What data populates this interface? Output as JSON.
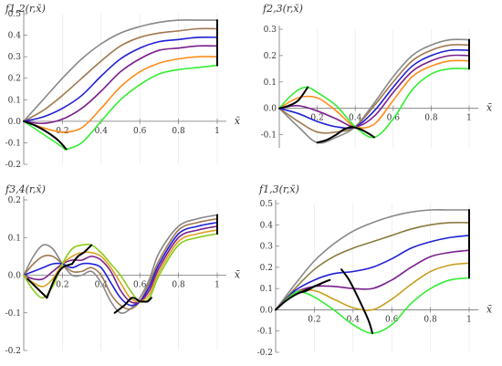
{
  "chart_data": [
    {
      "type": "line",
      "title": "f1,2(r,x̄)",
      "xlabel": "x̄",
      "ylabel": "",
      "xlim": [
        0,
        1
      ],
      "ylim": [
        -0.2,
        0.5
      ],
      "xticks": [
        "0.2",
        "0.4",
        "0.6",
        "0.8",
        "1"
      ],
      "yticks": [
        "-0.2",
        "-0.1",
        "0.0",
        "0.1",
        "0.2",
        "0.3",
        "0.4",
        "0.5"
      ],
      "series": [
        {
          "color": "#888888",
          "x": [
            0,
            0.1,
            0.2,
            0.3,
            0.4,
            0.5,
            0.6,
            0.7,
            0.8,
            0.9,
            1.0
          ],
          "values": [
            0,
            0.1,
            0.2,
            0.29,
            0.36,
            0.41,
            0.44,
            0.46,
            0.47,
            0.47,
            0.47
          ]
        },
        {
          "color": "#a07850",
          "x": [
            0,
            0.1,
            0.2,
            0.3,
            0.4,
            0.5,
            0.6,
            0.7,
            0.8,
            0.9,
            1.0
          ],
          "values": [
            0,
            0.05,
            0.12,
            0.2,
            0.28,
            0.35,
            0.39,
            0.41,
            0.42,
            0.43,
            0.43
          ]
        },
        {
          "color": "#1f1fd6",
          "x": [
            0,
            0.1,
            0.2,
            0.3,
            0.4,
            0.5,
            0.6,
            0.7,
            0.8,
            0.9,
            1.0
          ],
          "values": [
            0,
            0.02,
            0.06,
            0.12,
            0.21,
            0.29,
            0.34,
            0.37,
            0.38,
            0.39,
            0.39
          ]
        },
        {
          "color": "#7a1f8c",
          "x": [
            0,
            0.1,
            0.2,
            0.3,
            0.4,
            0.5,
            0.6,
            0.7,
            0.8,
            0.9,
            1.0
          ],
          "values": [
            0,
            -0.01,
            0.01,
            0.06,
            0.14,
            0.23,
            0.29,
            0.33,
            0.34,
            0.35,
            0.35
          ]
        },
        {
          "color": "#ff8c1a",
          "x": [
            0,
            0.1,
            0.2,
            0.3,
            0.4,
            0.5,
            0.6,
            0.7,
            0.8,
            0.9,
            1.0
          ],
          "values": [
            0,
            -0.03,
            -0.05,
            -0.03,
            0.06,
            0.16,
            0.23,
            0.27,
            0.29,
            0.3,
            0.3
          ]
        },
        {
          "color": "#33ee33",
          "x": [
            0,
            0.1,
            0.2,
            0.22,
            0.3,
            0.4,
            0.5,
            0.6,
            0.7,
            0.8,
            0.9,
            1.0
          ],
          "values": [
            0,
            -0.06,
            -0.12,
            -0.13,
            -0.1,
            0.0,
            0.1,
            0.17,
            0.22,
            0.24,
            0.25,
            0.26
          ]
        }
      ],
      "black_segments": [
        {
          "x": [
            0,
            0.06,
            0.12,
            0.18,
            0.22
          ],
          "values": [
            0,
            -0.02,
            -0.05,
            -0.09,
            -0.13
          ]
        },
        {
          "x": [
            1.0,
            1.0
          ],
          "values": [
            0.26,
            0.47
          ]
        }
      ]
    },
    {
      "type": "line",
      "title": "f2,3(r,x̄)",
      "xlabel": "x̄",
      "ylabel": "",
      "xlim": [
        0,
        1
      ],
      "ylim": [
        -0.15,
        0.3
      ],
      "xticks": [
        "0.2",
        "0.4",
        "0.6",
        "0.8",
        "1"
      ],
      "yticks": [
        "-0.1",
        "0.0",
        "0.1",
        "0.2",
        "0.3"
      ],
      "series": [
        {
          "color": "#888888",
          "x": [
            0,
            0.1,
            0.2,
            0.3,
            0.4,
            0.5,
            0.6,
            0.7,
            0.8,
            0.9,
            1.0
          ],
          "values": [
            0,
            -0.07,
            -0.13,
            -0.11,
            -0.07,
            0.02,
            0.12,
            0.2,
            0.24,
            0.26,
            0.26
          ]
        },
        {
          "color": "#a07850",
          "x": [
            0,
            0.1,
            0.2,
            0.3,
            0.4,
            0.5,
            0.6,
            0.7,
            0.8,
            0.9,
            1.0
          ],
          "values": [
            0,
            -0.05,
            -0.09,
            -0.09,
            -0.07,
            0.01,
            0.1,
            0.18,
            0.22,
            0.24,
            0.24
          ]
        },
        {
          "color": "#1f1fd6",
          "x": [
            0,
            0.1,
            0.2,
            0.3,
            0.4,
            0.5,
            0.6,
            0.7,
            0.8,
            0.9,
            1.0
          ],
          "values": [
            0,
            -0.02,
            -0.05,
            -0.07,
            -0.07,
            -0.01,
            0.08,
            0.16,
            0.2,
            0.22,
            0.22
          ]
        },
        {
          "color": "#7a1f8c",
          "x": [
            0,
            0.1,
            0.2,
            0.3,
            0.4,
            0.5,
            0.6,
            0.7,
            0.8,
            0.9,
            1.0
          ],
          "values": [
            0,
            0.01,
            -0.01,
            -0.04,
            -0.07,
            -0.03,
            0.06,
            0.14,
            0.18,
            0.2,
            0.2
          ]
        },
        {
          "color": "#ff8c1a",
          "x": [
            0,
            0.1,
            0.2,
            0.3,
            0.4,
            0.5,
            0.6,
            0.7,
            0.8,
            0.9,
            1.0
          ],
          "values": [
            0,
            0.04,
            0.04,
            -0.01,
            -0.07,
            -0.06,
            0.03,
            0.12,
            0.16,
            0.18,
            0.18
          ]
        },
        {
          "color": "#33ee33",
          "x": [
            0,
            0.05,
            0.1,
            0.15,
            0.2,
            0.3,
            0.4,
            0.5,
            0.6,
            0.7,
            0.8,
            0.9,
            1.0
          ],
          "values": [
            0,
            0.04,
            0.07,
            0.08,
            0.06,
            0.01,
            -0.07,
            -0.11,
            -0.04,
            0.07,
            0.13,
            0.15,
            0.15
          ]
        }
      ],
      "black_segments": [
        {
          "x": [
            0,
            0.05,
            0.1,
            0.15
          ],
          "values": [
            0,
            0.01,
            0.03,
            0.08
          ]
        },
        {
          "x": [
            0.2,
            0.25,
            0.3,
            0.34,
            0.38
          ],
          "values": [
            -0.13,
            -0.12,
            -0.1,
            -0.08,
            -0.07
          ]
        },
        {
          "x": [
            0.38,
            0.43,
            0.48,
            0.5
          ],
          "values": [
            -0.07,
            -0.08,
            -0.1,
            -0.11
          ]
        },
        {
          "x": [
            1.0,
            1.0
          ],
          "values": [
            0.15,
            0.26
          ]
        }
      ]
    },
    {
      "type": "line",
      "title": "f3,4(r,x̄)",
      "xlabel": "x̄",
      "ylabel": "",
      "xlim": [
        0,
        1
      ],
      "ylim": [
        -0.2,
        0.2
      ],
      "xticks": [
        "0.2",
        "0.4",
        "0.6",
        "0.8",
        "1"
      ],
      "yticks": [
        "-0.2",
        "-0.1",
        "0.0",
        "0.1",
        "0.2"
      ],
      "series": [
        {
          "color": "#888888",
          "x": [
            0,
            0.05,
            0.1,
            0.15,
            0.2,
            0.25,
            0.3,
            0.35,
            0.4,
            0.45,
            0.5,
            0.55,
            0.6,
            0.65,
            0.7,
            0.8,
            0.9,
            1.0
          ],
          "values": [
            0,
            0.05,
            0.08,
            0.07,
            0.03,
            0.0,
            0.0,
            0.01,
            -0.02,
            -0.07,
            -0.1,
            -0.09,
            -0.06,
            -0.01,
            0.06,
            0.13,
            0.15,
            0.16
          ]
        },
        {
          "color": "#a07850",
          "x": [
            0,
            0.05,
            0.1,
            0.15,
            0.2,
            0.25,
            0.3,
            0.35,
            0.4,
            0.45,
            0.5,
            0.55,
            0.6,
            0.65,
            0.7,
            0.8,
            0.9,
            1.0
          ],
          "values": [
            0,
            0.03,
            0.05,
            0.05,
            0.03,
            0.01,
            0.01,
            0.02,
            0.0,
            -0.05,
            -0.08,
            -0.09,
            -0.07,
            -0.02,
            0.04,
            0.12,
            0.14,
            0.15
          ]
        },
        {
          "color": "#1f1fd6",
          "x": [
            0,
            0.05,
            0.1,
            0.15,
            0.2,
            0.25,
            0.3,
            0.35,
            0.4,
            0.45,
            0.5,
            0.55,
            0.6,
            0.65,
            0.7,
            0.8,
            0.9,
            1.0
          ],
          "values": [
            0,
            0.01,
            0.02,
            0.03,
            0.03,
            0.02,
            0.03,
            0.03,
            0.02,
            -0.02,
            -0.06,
            -0.08,
            -0.07,
            -0.03,
            0.03,
            0.11,
            0.13,
            0.14
          ]
        },
        {
          "color": "#7a1f8c",
          "x": [
            0,
            0.05,
            0.1,
            0.15,
            0.2,
            0.25,
            0.3,
            0.35,
            0.4,
            0.45,
            0.5,
            0.55,
            0.6,
            0.65,
            0.7,
            0.8,
            0.9,
            1.0
          ],
          "values": [
            0,
            -0.01,
            -0.01,
            0.01,
            0.03,
            0.04,
            0.04,
            0.05,
            0.04,
            0.01,
            -0.04,
            -0.07,
            -0.07,
            -0.04,
            0.02,
            0.1,
            0.12,
            0.13
          ]
        },
        {
          "color": "#e0a020",
          "x": [
            0,
            0.05,
            0.1,
            0.15,
            0.2,
            0.25,
            0.3,
            0.35,
            0.4,
            0.45,
            0.5,
            0.55,
            0.6,
            0.65,
            0.7,
            0.8,
            0.9,
            1.0
          ],
          "values": [
            0,
            -0.02,
            -0.03,
            -0.01,
            0.03,
            0.05,
            0.06,
            0.06,
            0.05,
            0.02,
            -0.02,
            -0.06,
            -0.07,
            -0.05,
            0.01,
            0.09,
            0.11,
            0.12
          ]
        },
        {
          "color": "#8ccc1a",
          "x": [
            0,
            0.05,
            0.1,
            0.15,
            0.2,
            0.25,
            0.3,
            0.35,
            0.4,
            0.45,
            0.5,
            0.55,
            0.6,
            0.65,
            0.7,
            0.8,
            0.9,
            1.0
          ],
          "values": [
            0,
            -0.04,
            -0.06,
            -0.03,
            0.03,
            0.07,
            0.08,
            0.08,
            0.06,
            0.03,
            0.0,
            -0.04,
            -0.07,
            -0.06,
            0.0,
            0.08,
            0.1,
            0.11
          ]
        }
      ],
      "black_segments": [
        {
          "x": [
            0.02,
            0.06,
            0.1,
            0.12
          ],
          "values": [
            -0.01,
            -0.03,
            -0.05,
            -0.06
          ]
        },
        {
          "x": [
            0.12,
            0.16,
            0.2,
            0.25
          ],
          "values": [
            -0.06,
            -0.01,
            0.02,
            0.03
          ]
        },
        {
          "x": [
            0.25,
            0.28,
            0.31,
            0.35
          ],
          "values": [
            0.03,
            0.05,
            0.06,
            0.08
          ]
        },
        {
          "x": [
            0.47,
            0.52,
            0.56,
            0.6
          ],
          "values": [
            -0.1,
            -0.08,
            -0.06,
            -0.07
          ]
        },
        {
          "x": [
            0.6,
            0.62,
            0.64,
            0.66
          ],
          "values": [
            -0.07,
            -0.07,
            -0.07,
            -0.06
          ]
        },
        {
          "x": [
            1.0,
            1.0
          ],
          "values": [
            0.11,
            0.16
          ]
        }
      ]
    },
    {
      "type": "line",
      "title": "f1,3(r,x̄)",
      "xlabel": "x̄",
      "ylabel": "",
      "xlim": [
        0,
        1
      ],
      "ylim": [
        -0.2,
        0.5
      ],
      "xticks": [
        "0.2",
        "0.4",
        "0.6",
        "0.8",
        "1"
      ],
      "yticks": [
        "-0.2",
        "-0.1",
        "0.0",
        "0.1",
        "0.2",
        "0.3",
        "0.4",
        "0.5"
      ],
      "series": [
        {
          "color": "#888888",
          "x": [
            0,
            0.1,
            0.2,
            0.3,
            0.4,
            0.5,
            0.6,
            0.7,
            0.8,
            0.9,
            1.0
          ],
          "values": [
            0,
            0.12,
            0.23,
            0.31,
            0.37,
            0.41,
            0.44,
            0.46,
            0.47,
            0.47,
            0.47
          ]
        },
        {
          "color": "#8a7a40",
          "x": [
            0,
            0.1,
            0.2,
            0.3,
            0.4,
            0.5,
            0.6,
            0.7,
            0.8,
            0.9,
            1.0
          ],
          "values": [
            0,
            0.1,
            0.19,
            0.25,
            0.29,
            0.32,
            0.35,
            0.38,
            0.4,
            0.41,
            0.41
          ]
        },
        {
          "color": "#1f1fd6",
          "x": [
            0,
            0.1,
            0.2,
            0.3,
            0.4,
            0.5,
            0.6,
            0.7,
            0.8,
            0.9,
            1.0
          ],
          "values": [
            0,
            0.09,
            0.14,
            0.17,
            0.18,
            0.2,
            0.24,
            0.29,
            0.32,
            0.34,
            0.35
          ]
        },
        {
          "color": "#7a1f8c",
          "x": [
            0,
            0.1,
            0.2,
            0.3,
            0.4,
            0.5,
            0.6,
            0.7,
            0.8,
            0.9,
            1.0
          ],
          "values": [
            0,
            0.08,
            0.11,
            0.11,
            0.1,
            0.1,
            0.14,
            0.2,
            0.25,
            0.27,
            0.28
          ]
        },
        {
          "color": "#c8a020",
          "x": [
            0,
            0.1,
            0.2,
            0.3,
            0.4,
            0.5,
            0.6,
            0.7,
            0.8,
            0.9,
            1.0
          ],
          "values": [
            0,
            0.08,
            0.09,
            0.05,
            0.01,
            0.0,
            0.05,
            0.12,
            0.18,
            0.21,
            0.22
          ]
        },
        {
          "color": "#33ee33",
          "x": [
            0,
            0.1,
            0.15,
            0.2,
            0.3,
            0.4,
            0.5,
            0.6,
            0.7,
            0.8,
            0.9,
            1.0
          ],
          "values": [
            0,
            0.08,
            0.08,
            0.06,
            0.0,
            -0.07,
            -0.11,
            -0.07,
            0.03,
            0.1,
            0.14,
            0.15
          ]
        }
      ],
      "black_segments": [
        {
          "x": [
            0,
            0.05,
            0.1,
            0.15,
            0.2,
            0.25,
            0.28
          ],
          "values": [
            0,
            0.04,
            0.07,
            0.09,
            0.11,
            0.13,
            0.14
          ]
        },
        {
          "x": [
            0.12,
            0.16,
            0.2,
            0.23
          ],
          "values": [
            0.08,
            0.09,
            0.11,
            0.12
          ]
        },
        {
          "x": [
            0.34,
            0.38,
            0.43,
            0.48,
            0.5
          ],
          "values": [
            0.19,
            0.14,
            0.05,
            -0.05,
            -0.11
          ]
        },
        {
          "x": [
            1.0,
            1.0
          ],
          "values": [
            0.15,
            0.47
          ]
        }
      ]
    }
  ]
}
